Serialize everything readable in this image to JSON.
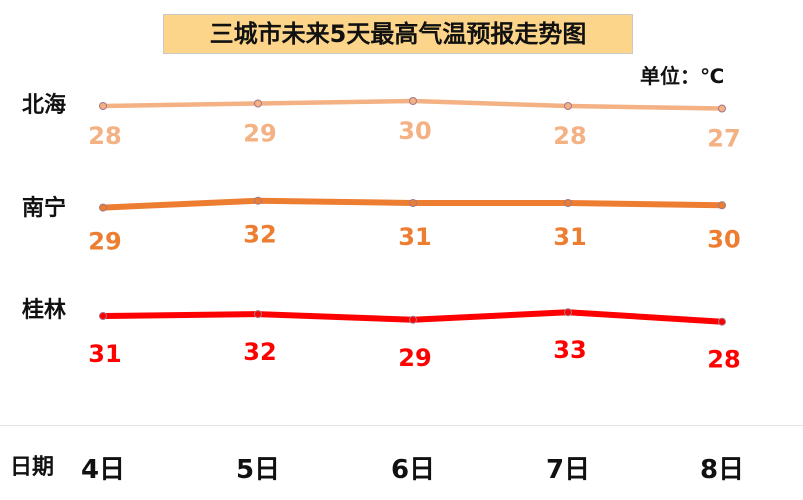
{
  "title": "三城市未来5天最高气温预报走势图",
  "unit_label": "单位：℃",
  "colors": {
    "beihai": "#F4B183",
    "nanning": "#ED7D31",
    "guilin": "#FF0000",
    "title_bg": "#FCD58A"
  },
  "chart_data": {
    "type": "line",
    "title": "三城市未来5天最高气温预报走势图",
    "xlabel": "日期",
    "ylabel": "",
    "categories": [
      "4日",
      "5日",
      "6日",
      "7日",
      "8日"
    ],
    "grid": false,
    "legend": "left",
    "series": [
      {
        "name": "北海",
        "values": [
          28,
          29,
          30,
          28,
          27
        ]
      },
      {
        "name": "南宁",
        "values": [
          29,
          32,
          31,
          31,
          30
        ]
      },
      {
        "name": "桂林",
        "values": [
          31,
          32,
          29,
          33,
          28
        ]
      }
    ]
  }
}
